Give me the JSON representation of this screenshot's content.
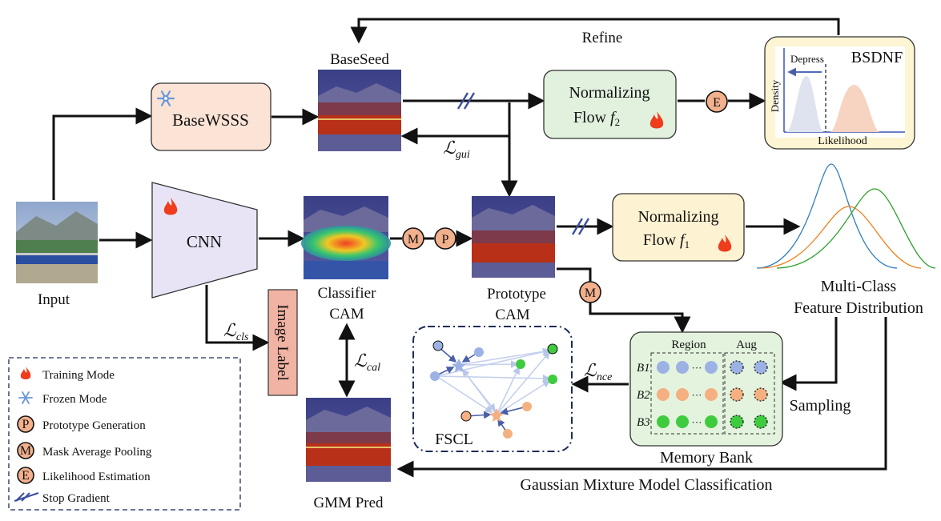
{
  "labels": {
    "refine": "Refine",
    "baseseed": "BaseSeed",
    "basewsss": "BaseWSSS",
    "nf2_line1": "Normalizing",
    "nf2_line2": "Flow",
    "nf2_sym": "f",
    "nf2_sub": "2",
    "nf1_line1": "Normalizing",
    "nf1_line2": "Flow",
    "nf1_sym": "f",
    "nf1_sub": "1",
    "bsdnf": "BSDNF",
    "depress": "Depress",
    "density": "Density",
    "likelihood": "Likelihood",
    "cnn": "CNN",
    "input": "Input",
    "classifier_cam_1": "Classifier",
    "classifier_cam_2": "CAM",
    "prototype_cam_1": "Prototype",
    "prototype_cam_2": "CAM",
    "image_label": "Image Label",
    "gmm_pred": "GMM Pred",
    "multiclass_1": "Multi-Class",
    "multiclass_2": "Feature Distribution",
    "memory_bank": "Memory Bank",
    "region": "Region",
    "aug": "Aug",
    "b1": "B1",
    "b2": "B2",
    "b3": "B3",
    "dots": "···",
    "sampling": "Sampling",
    "fscl": "FSCL",
    "gmm_classification": "Gaussian Mixture Model Classification",
    "loss_gui_sym": "ℒ",
    "loss_gui_sub": "gui",
    "loss_cls_sym": "ℒ",
    "loss_cls_sub": "cls",
    "loss_cal_sym": "ℒ",
    "loss_cal_sub": "cal",
    "loss_nce_sym": "ℒ",
    "loss_nce_sub": "nce",
    "op_m": "M",
    "op_p": "P",
    "op_e": "E"
  },
  "legend": {
    "items": [
      {
        "icon": "flame-icon",
        "label": "Training Mode"
      },
      {
        "icon": "snowflake-icon",
        "label": "Frozen Mode"
      },
      {
        "icon": "P",
        "label": "Prototype Generation"
      },
      {
        "icon": "M",
        "label": "Mask Average Pooling"
      },
      {
        "icon": "E",
        "label": "Likelihood Estimation"
      },
      {
        "icon": "stop-gradient-icon",
        "label": "Stop Gradient"
      }
    ]
  },
  "colors": {
    "basewsss_fill": "#fbe3d6",
    "nf2_fill": "#e1f1de",
    "nf1_fill": "#fdf2d2",
    "bsdnf_fill": "#fdf5d3",
    "cnn_fill": "#e8e4f6",
    "memory_fill": "#e3f3de",
    "image_label_fill": "#f1b3a3",
    "operator_fill": "#f2b08c",
    "curve_blue": "#2f7fc1",
    "curve_orange": "#f07f1f",
    "curve_green": "#2ca02c",
    "dot_blue": "#9db2e4",
    "dot_orange": "#f5b081",
    "dot_green": "#3fcb3f",
    "flame": "#ee3c1c",
    "snowflake": "#6a98d8"
  }
}
